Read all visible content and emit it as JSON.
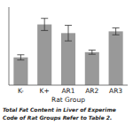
{
  "chart_data": {
    "type": "bar",
    "categories": [
      "K-",
      "K+",
      "AR1",
      "AR2",
      "AR3"
    ],
    "values": [
      1.6,
      3.5,
      3.0,
      1.9,
      3.1
    ],
    "errors": [
      0.15,
      0.35,
      0.45,
      0.12,
      0.2
    ],
    "color": "#999999",
    "x_label": "Rat Group",
    "ylim": [
      0,
      4.5
    ],
    "tick_labels": "x",
    "annotations": [
      "Total Fat Content in Liver of Experime",
      "Code of Rat Groups Refer to Table 2."
    ]
  }
}
